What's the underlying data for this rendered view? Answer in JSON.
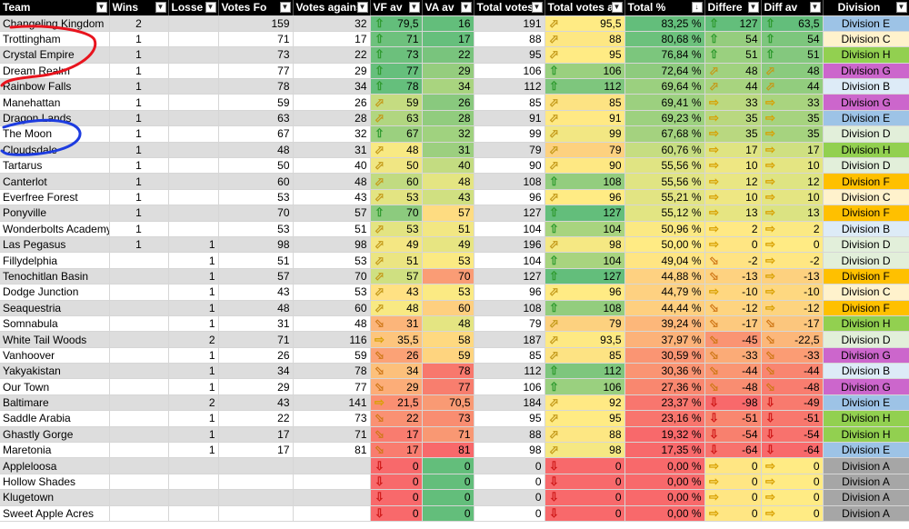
{
  "columns": [
    "Team",
    "Wins",
    "Losses",
    "Votes For",
    "Votes against",
    "VF avg",
    "VA avg",
    "Total votes",
    "Total votes avg",
    "Total %",
    "Difference",
    "Diff avg",
    "Division"
  ],
  "header_labels": [
    "Team",
    "Wins",
    "Losse",
    "Votes Fo",
    "Votes agains",
    "VF av",
    "VA av",
    "Total votes",
    "Total votes a",
    "Total %",
    "Differe",
    "Diff av",
    "Division"
  ],
  "rows": [
    {
      "team": "Changeling Kingdom",
      "wins": "2",
      "losses": "",
      "vf": "159",
      "va": "32",
      "vfa": "79,5",
      "vfa_i": "up",
      "vfa_c": "#63be7b",
      "vaa": "16",
      "vaa_c": "#63be7b",
      "tot": "191",
      "tva": "95,5",
      "tva_i": "ur",
      "tva_c": "#ffeb84",
      "pct": "83,25 %",
      "pct_c": "#63be7b",
      "diff": "127",
      "diff_i": "up",
      "diff_c": "#63be7b",
      "dav": "63,5",
      "dav_i": "up",
      "dav_c": "#63be7b",
      "div": "Division E",
      "div_c": "#9dc3e6"
    },
    {
      "team": "Trottingham",
      "wins": "1",
      "losses": "",
      "vf": "71",
      "va": "17",
      "vfa": "71",
      "vfa_i": "up",
      "vfa_c": "#6ec17d",
      "vaa": "17",
      "vaa_c": "#66bf7c",
      "tot": "88",
      "tva": "88",
      "tva_i": "ur",
      "tva_c": "#fde783",
      "pct": "80,68 %",
      "pct_c": "#6cc17c",
      "diff": "54",
      "diff_i": "up",
      "diff_c": "#95cd7e",
      "dav": "54",
      "dav_i": "up",
      "dav_c": "#7dc67d",
      "div": "Division C",
      "div_c": "#fff2cc"
    },
    {
      "team": "Crystal Empire",
      "wins": "1",
      "losses": "",
      "vf": "73",
      "va": "22",
      "vfa": "73",
      "vfa_i": "up",
      "vfa_c": "#6cc07c",
      "vaa": "22",
      "vaa_c": "#79c47d",
      "tot": "95",
      "tva": "95",
      "tva_i": "ur",
      "tva_c": "#ffeb84",
      "pct": "76,84 %",
      "pct_c": "#7cc67d",
      "diff": "51",
      "diff_i": "up",
      "diff_c": "#9ad07f",
      "dav": "51",
      "dav_i": "up",
      "dav_c": "#84c87e",
      "div": "Division H",
      "div_c": "#92d050"
    },
    {
      "team": "Dream Realm",
      "wins": "1",
      "losses": "",
      "vf": "77",
      "va": "29",
      "vfa": "77",
      "vfa_i": "up",
      "vfa_c": "#66bf7c",
      "vaa": "29",
      "vaa_c": "#95cd7e",
      "tot": "106",
      "tva": "106",
      "tva_i": "up",
      "tva_c": "#9ad07f",
      "pct": "72,64 %",
      "pct_c": "#8ecb7e",
      "diff": "48",
      "diff_i": "ur",
      "diff_c": "#a0d27f",
      "dav": "48",
      "dav_i": "ur",
      "dav_c": "#8acb7e",
      "div": "Division G",
      "div_c": "#cc66cc"
    },
    {
      "team": "Rainbow Falls",
      "wins": "1",
      "losses": "",
      "vf": "78",
      "va": "34",
      "vfa": "78",
      "vfa_i": "up",
      "vfa_c": "#65bf7c",
      "vaa": "34",
      "vaa_c": "#a9d47f",
      "tot": "112",
      "tva": "112",
      "tva_i": "up",
      "tva_c": "#7ec67d",
      "pct": "69,64 %",
      "pct_c": "#9bd07f",
      "diff": "44",
      "diff_i": "ur",
      "diff_c": "#a8d47f",
      "dav": "44",
      "dav_i": "ur",
      "dav_c": "#92cd7e",
      "div": "Division B",
      "div_c": "#ddebf7"
    },
    {
      "team": "Manehattan",
      "wins": "1",
      "losses": "",
      "vf": "59",
      "va": "26",
      "vfa": "59",
      "vfa_i": "ur",
      "vfa_c": "#c5dc81",
      "vaa": "26",
      "vaa_c": "#89c97e",
      "tot": "85",
      "tva": "85",
      "tva_i": "ur",
      "tva_c": "#fde383",
      "pct": "69,41 %",
      "pct_c": "#9cd07f",
      "diff": "33",
      "diff_i": "rt",
      "diff_c": "#bbd980",
      "dav": "33",
      "dav_i": "rt",
      "dav_c": "#a9d47f",
      "div": "Division G",
      "div_c": "#cc66cc"
    },
    {
      "team": "Dragon Lands",
      "wins": "1",
      "losses": "",
      "vf": "63",
      "va": "28",
      "vfa": "63",
      "vfa_i": "ur",
      "vfa_c": "#b1d680",
      "vaa": "28",
      "vaa_c": "#91cc7e",
      "tot": "91",
      "tva": "91",
      "tva_i": "ur",
      "tva_c": "#ffe984",
      "pct": "69,23 %",
      "pct_c": "#9dd17f",
      "diff": "35",
      "diff_i": "rt",
      "diff_c": "#b9d880",
      "dav": "35",
      "dav_i": "rt",
      "dav_c": "#a6d37f",
      "div": "Division E",
      "div_c": "#9dc3e6"
    },
    {
      "team": "The Moon",
      "wins": "1",
      "losses": "",
      "vf": "67",
      "va": "32",
      "vfa": "67",
      "vfa_i": "up",
      "vfa_c": "#9bd07f",
      "vaa": "32",
      "vaa_c": "#a0d27f",
      "tot": "99",
      "tva": "99",
      "tva_i": "ur",
      "tva_c": "#f2e783",
      "pct": "67,68 %",
      "pct_c": "#a4d27f",
      "diff": "35",
      "diff_i": "rt",
      "diff_c": "#b9d880",
      "dav": "35",
      "dav_i": "rt",
      "dav_c": "#a6d37f",
      "div": "Division D",
      "div_c": "#e2efda"
    },
    {
      "team": "Cloudsdale",
      "wins": "1",
      "losses": "",
      "vf": "48",
      "va": "31",
      "vfa": "48",
      "vfa_i": "ur",
      "vfa_c": "#f8e983",
      "vaa": "31",
      "vaa_c": "#9ccf7f",
      "tot": "79",
      "tva": "79",
      "tva_i": "ur",
      "tva_c": "#fdd17f",
      "pct": "60,76 %",
      "pct_c": "#c6dd81",
      "diff": "17",
      "diff_i": "rt",
      "diff_c": "#dfe482",
      "dav": "17",
      "dav_i": "rt",
      "dav_c": "#cfe081",
      "div": "Division H",
      "div_c": "#92d050"
    },
    {
      "team": "Tartarus",
      "wins": "1",
      "losses": "",
      "vf": "50",
      "va": "40",
      "vfa": "50",
      "vfa_i": "ur",
      "vfa_c": "#f0e683",
      "vaa": "40",
      "vaa_c": "#c3dc81",
      "tot": "90",
      "tva": "90",
      "tva_i": "ur",
      "tva_c": "#fee883",
      "pct": "55,56 %",
      "pct_c": "#e0e483",
      "diff": "10",
      "diff_i": "rt",
      "diff_c": "#eee783",
      "dav": "10",
      "dav_i": "rt",
      "dav_c": "#e4e582",
      "div": "Division D",
      "div_c": "#e2efda"
    },
    {
      "team": "Canterlot",
      "wins": "1",
      "losses": "",
      "vf": "60",
      "va": "48",
      "vfa": "60",
      "vfa_i": "ur",
      "vfa_c": "#c1db81",
      "vaa": "48",
      "vaa_c": "#e4e582",
      "tot": "108",
      "tva": "108",
      "tva_i": "up",
      "tva_c": "#93cd7e",
      "pct": "55,56 %",
      "pct_c": "#e0e483",
      "diff": "12",
      "diff_i": "rt",
      "diff_c": "#e9e683",
      "dav": "12",
      "dav_i": "rt",
      "dav_c": "#dee482",
      "div": "Division F",
      "div_c": "#ffc000"
    },
    {
      "team": "Everfree Forest",
      "wins": "1",
      "losses": "",
      "vf": "53",
      "va": "43",
      "vfa": "53",
      "vfa_i": "ur",
      "vfa_c": "#e3e482",
      "vaa": "43",
      "vaa_c": "#d0e081",
      "tot": "96",
      "tva": "96",
      "tva_i": "ur",
      "tva_c": "#ffeb84",
      "pct": "55,21 %",
      "pct_c": "#e2e483",
      "diff": "10",
      "diff_i": "rt",
      "diff_c": "#eee783",
      "dav": "10",
      "dav_i": "rt",
      "dav_c": "#e4e582",
      "div": "Division C",
      "div_c": "#fff2cc"
    },
    {
      "team": "Ponyville",
      "wins": "1",
      "losses": "",
      "vf": "70",
      "va": "57",
      "vfa": "70",
      "vfa_i": "up",
      "vfa_c": "#8ccb7e",
      "vaa": "57",
      "vaa_c": "#fedc81",
      "tot": "127",
      "tva": "127",
      "tva_i": "up",
      "tva_c": "#63be7b",
      "pct": "55,12 %",
      "pct_c": "#e2e583",
      "diff": "13",
      "diff_i": "rt",
      "diff_c": "#e6e582",
      "dav": "13",
      "dav_i": "rt",
      "dav_c": "#dbe382",
      "div": "Division F",
      "div_c": "#ffc000"
    },
    {
      "team": "Wonderbolts Academy",
      "wins": "1",
      "losses": "",
      "vf": "53",
      "va": "51",
      "vfa": "53",
      "vfa_i": "ur",
      "vfa_c": "#e3e482",
      "vaa": "51",
      "vaa_c": "#f2e783",
      "tot": "104",
      "tva": "104",
      "tva_i": "up",
      "tva_c": "#a8d47f",
      "pct": "50,96 %",
      "pct_c": "#fbe983",
      "diff": "2",
      "diff_i": "rt",
      "diff_c": "#ffe984",
      "dav": "2",
      "dav_i": "rt",
      "dav_c": "#fbe983",
      "div": "Division B",
      "div_c": "#ddebf7"
    },
    {
      "team": "Las Pegasus",
      "wins": "1",
      "losses": "1",
      "vf": "98",
      "va": "98",
      "vfa": "49",
      "vfa_i": "ur",
      "vfa_c": "#f4e783",
      "vaa": "49",
      "vaa_c": "#e7e582",
      "tot": "196",
      "tva": "98",
      "tva_i": "ur",
      "tva_c": "#f5e883",
      "pct": "50,00 %",
      "pct_c": "#ffeb84",
      "diff": "0",
      "diff_i": "rt",
      "diff_c": "#ffe683",
      "dav": "0",
      "dav_i": "rt",
      "dav_c": "#ffeb84",
      "div": "Division D",
      "div_c": "#e2efda"
    },
    {
      "team": "Fillydelphia",
      "wins": "",
      "losses": "1",
      "vf": "51",
      "va": "53",
      "vfa": "51",
      "vfa_i": "ur",
      "vfa_c": "#ebe582",
      "vaa": "53",
      "vaa_c": "#fbea83",
      "tot": "104",
      "tva": "104",
      "tva_i": "up",
      "tva_c": "#a8d47f",
      "pct": "49,04 %",
      "pct_c": "#ffe583",
      "diff": "-2",
      "diff_i": "dr",
      "diff_c": "#ffe383",
      "dav": "-2",
      "dav_i": "rt",
      "dav_c": "#ffe783",
      "div": "Division D",
      "div_c": "#e2efda"
    },
    {
      "team": "Tenochitlan Basin",
      "wins": "",
      "losses": "1",
      "vf": "57",
      "va": "70",
      "vfa": "57",
      "vfa_i": "ur",
      "vfa_c": "#cfe081",
      "vaa": "70",
      "vaa_c": "#fa9c75",
      "tot": "127",
      "tva": "127",
      "tva_i": "up",
      "tva_c": "#63be7b",
      "pct": "44,88 %",
      "pct_c": "#fed181",
      "diff": "-13",
      "diff_i": "dr",
      "diff_c": "#fed280",
      "dav": "-13",
      "dav_i": "rt",
      "dav_c": "#fdd17f",
      "div": "Division F",
      "div_c": "#ffc000"
    },
    {
      "team": "Dodge Junction",
      "wins": "",
      "losses": "1",
      "vf": "43",
      "va": "53",
      "vfa": "43",
      "vfa_i": "ur",
      "vfa_c": "#ffe183",
      "vaa": "53",
      "vaa_c": "#fbea83",
      "tot": "96",
      "tva": "96",
      "tva_i": "ur",
      "tva_c": "#ffeb84",
      "pct": "44,79 %",
      "pct_c": "#fed181",
      "diff": "-10",
      "diff_i": "rt",
      "diff_c": "#ffd780",
      "dav": "-10",
      "dav_i": "rt",
      "dav_c": "#fed880",
      "div": "Division C",
      "div_c": "#fff2cc"
    },
    {
      "team": "Seaquestria",
      "wins": "",
      "losses": "1",
      "vf": "48",
      "va": "60",
      "vfa": "48",
      "vfa_i": "ur",
      "vfa_c": "#f8e983",
      "vaa": "60",
      "vaa_c": "#fecf7f",
      "tot": "108",
      "tva": "108",
      "tva_i": "up",
      "tva_c": "#93cd7e",
      "pct": "44,44 %",
      "pct_c": "#fecf7f",
      "diff": "-12",
      "diff_i": "dr",
      "diff_c": "#fed480",
      "dav": "-12",
      "dav_i": "rt",
      "dav_c": "#fdd47f",
      "div": "Division F",
      "div_c": "#ffc000"
    },
    {
      "team": "Somnabula",
      "wins": "",
      "losses": "1",
      "vf": "31",
      "va": "48",
      "vfa": "31",
      "vfa_i": "dr",
      "vfa_c": "#fcb57a",
      "vaa": "48",
      "vaa_c": "#e4e582",
      "tot": "79",
      "tva": "79",
      "tva_i": "ur",
      "tva_c": "#fdd17f",
      "pct": "39,24 %",
      "pct_c": "#fdb77a",
      "diff": "-17",
      "diff_i": "dr",
      "diff_c": "#fdc97e",
      "dav": "-17",
      "dav_i": "dr",
      "dav_c": "#fcc67d",
      "div": "Division H",
      "div_c": "#92d050"
    },
    {
      "team": "White Tail Woods",
      "wins": "",
      "losses": "2",
      "vf": "71",
      "va": "116",
      "vfa": "35,5",
      "vfa_i": "rt",
      "vfa_c": "#fdc57d",
      "vaa": "58",
      "vaa_c": "#fed980",
      "tot": "187",
      "tva": "93,5",
      "tva_i": "ur",
      "tva_c": "#fee983",
      "pct": "37,97 %",
      "pct_c": "#fcb279",
      "diff": "-45",
      "diff_i": "dr",
      "diff_c": "#fa9473",
      "dav": "-22,5",
      "dav_i": "dr",
      "dav_c": "#fcb77a",
      "div": "Division D",
      "div_c": "#e2efda"
    },
    {
      "team": "Vanhoover",
      "wins": "",
      "losses": "1",
      "vf": "26",
      "va": "59",
      "vfa": "26",
      "vfa_i": "dr",
      "vfa_c": "#fba276",
      "vaa": "59",
      "vaa_c": "#fed47f",
      "tot": "85",
      "tva": "85",
      "tva_i": "ur",
      "tva_c": "#fde383",
      "pct": "30,59 %",
      "pct_c": "#fa9573",
      "diff": "-33",
      "diff_i": "dr",
      "diff_c": "#fbab77",
      "dav": "-33",
      "dav_i": "dr",
      "dav_c": "#fb9c74",
      "div": "Division G",
      "div_c": "#cc66cc"
    },
    {
      "team": "Yakyakistan",
      "wins": "",
      "losses": "1",
      "vf": "34",
      "va": "78",
      "vfa": "34",
      "vfa_i": "dr",
      "vfa_c": "#fcc07b",
      "vaa": "78",
      "vaa_c": "#f8786d",
      "tot": "112",
      "tva": "112",
      "tva_i": "up",
      "tva_c": "#7ec67d",
      "pct": "30,36 %",
      "pct_c": "#fa9473",
      "diff": "-44",
      "diff_i": "dr",
      "diff_c": "#fa9673",
      "dav": "-44",
      "dav_i": "dr",
      "dav_c": "#f98570",
      "div": "Division B",
      "div_c": "#ddebf7"
    },
    {
      "team": "Our Town",
      "wins": "",
      "losses": "1",
      "vf": "29",
      "va": "77",
      "vfa": "29",
      "vfa_i": "dr",
      "vfa_c": "#fcad78",
      "vaa": "77",
      "vaa_c": "#f87e6e",
      "tot": "106",
      "tva": "106",
      "tva_i": "up",
      "tva_c": "#9ad07f",
      "pct": "27,36 %",
      "pct_c": "#f9876f",
      "diff": "-48",
      "diff_i": "dr",
      "diff_c": "#f98d71",
      "dav": "-48",
      "dav_i": "dr",
      "dav_c": "#f97d6f",
      "div": "Division G",
      "div_c": "#cc66cc"
    },
    {
      "team": "Baltimare",
      "wins": "",
      "losses": "2",
      "vf": "43",
      "va": "141",
      "vfa": "21,5",
      "vfa_i": "rt",
      "vfa_c": "#fa8f72",
      "vaa": "70,5",
      "vaa_c": "#f99a74",
      "tot": "184",
      "tva": "92",
      "tva_i": "ur",
      "tva_c": "#ffe984",
      "pct": "23,37 %",
      "pct_c": "#f8766e",
      "diff": "-98",
      "diff_i": "dn",
      "diff_c": "#f8696b",
      "dav": "-49",
      "dav_i": "dn",
      "dav_c": "#f87a6e",
      "div": "Division E",
      "div_c": "#9dc3e6"
    },
    {
      "team": "Saddle Arabia",
      "wins": "",
      "losses": "1",
      "vf": "22",
      "va": "73",
      "vfa": "22",
      "vfa_i": "dr",
      "vfa_c": "#fa9173",
      "vaa": "73",
      "vaa_c": "#f98d71",
      "tot": "95",
      "tva": "95",
      "tva_i": "ur",
      "tva_c": "#ffeb84",
      "pct": "23,16 %",
      "pct_c": "#f8756d",
      "diff": "-51",
      "diff_i": "dn",
      "diff_c": "#f98770",
      "dav": "-51",
      "dav_i": "dn",
      "dav_c": "#f8776d",
      "div": "Division H",
      "div_c": "#92d050"
    },
    {
      "team": "Ghastly Gorge",
      "wins": "",
      "losses": "1",
      "vf": "17",
      "va": "71",
      "vfa": "17",
      "vfa_i": "dr",
      "vfa_c": "#f97c6f",
      "vaa": "71",
      "vaa_c": "#f99873",
      "tot": "88",
      "tva": "88",
      "tva_i": "ur",
      "tva_c": "#fde783",
      "pct": "19,32 %",
      "pct_c": "#f8696b",
      "diff": "-54",
      "diff_i": "dn",
      "diff_c": "#f8806e",
      "dav": "-54",
      "dav_i": "dn",
      "dav_c": "#f8726d",
      "div": "Division H",
      "div_c": "#92d050"
    },
    {
      "team": "Maretonia",
      "wins": "",
      "losses": "1",
      "vf": "17",
      "va": "81",
      "vfa": "17",
      "vfa_i": "dr",
      "vfa_c": "#f97c6f",
      "vaa": "81",
      "vaa_c": "#f8696b",
      "tot": "98",
      "tva": "98",
      "tva_i": "ur",
      "tva_c": "#f5e883",
      "pct": "17,35 %",
      "pct_c": "#f8696b",
      "diff": "-64",
      "diff_i": "dn",
      "diff_c": "#f8726d",
      "dav": "-64",
      "dav_i": "dn",
      "dav_c": "#f8696b",
      "div": "Division E",
      "div_c": "#9dc3e6"
    },
    {
      "team": "Appleloosa",
      "wins": "",
      "losses": "",
      "vf": "",
      "va": "",
      "vfa": "0",
      "vfa_i": "dn",
      "vfa_c": "#f8696b",
      "vaa": "0",
      "vaa_c": "#63be7b",
      "tot": "0",
      "tva": "0",
      "tva_i": "dn",
      "tva_c": "#f8696b",
      "pct": "0,00 %",
      "pct_c": "#f8696b",
      "diff": "0",
      "diff_i": "rt",
      "diff_c": "#ffe683",
      "dav": "0",
      "dav_i": "rt",
      "dav_c": "#ffeb84",
      "div": "Division A",
      "div_c": "#a6a6a6"
    },
    {
      "team": "Hollow Shades",
      "wins": "",
      "losses": "",
      "vf": "",
      "va": "",
      "vfa": "0",
      "vfa_i": "dn",
      "vfa_c": "#f8696b",
      "vaa": "0",
      "vaa_c": "#63be7b",
      "tot": "0",
      "tva": "0",
      "tva_i": "dn",
      "tva_c": "#f8696b",
      "pct": "0,00 %",
      "pct_c": "#f8696b",
      "diff": "0",
      "diff_i": "rt",
      "diff_c": "#ffe683",
      "dav": "0",
      "dav_i": "rt",
      "dav_c": "#ffeb84",
      "div": "Division A",
      "div_c": "#a6a6a6"
    },
    {
      "team": "Klugetown",
      "wins": "",
      "losses": "",
      "vf": "",
      "va": "",
      "vfa": "0",
      "vfa_i": "dn",
      "vfa_c": "#f8696b",
      "vaa": "0",
      "vaa_c": "#63be7b",
      "tot": "0",
      "tva": "0",
      "tva_i": "dn",
      "tva_c": "#f8696b",
      "pct": "0,00 %",
      "pct_c": "#f8696b",
      "diff": "0",
      "diff_i": "rt",
      "diff_c": "#ffe683",
      "dav": "0",
      "dav_i": "rt",
      "dav_c": "#ffeb84",
      "div": "Division A",
      "div_c": "#a6a6a6"
    },
    {
      "team": "Sweet Apple Acres",
      "wins": "",
      "losses": "",
      "vf": "",
      "va": "",
      "vfa": "0",
      "vfa_i": "dn",
      "vfa_c": "#f8696b",
      "vaa": "0",
      "vaa_c": "#63be7b",
      "tot": "0",
      "tva": "0",
      "tva_i": "dn",
      "tva_c": "#f8696b",
      "pct": "0,00 %",
      "pct_c": "#f8696b",
      "diff": "0",
      "diff_i": "rt",
      "diff_c": "#ffe683",
      "dav": "0",
      "dav_i": "rt",
      "dav_c": "#ffeb84",
      "div": "Division A",
      "div_c": "#a6a6a6"
    }
  ]
}
